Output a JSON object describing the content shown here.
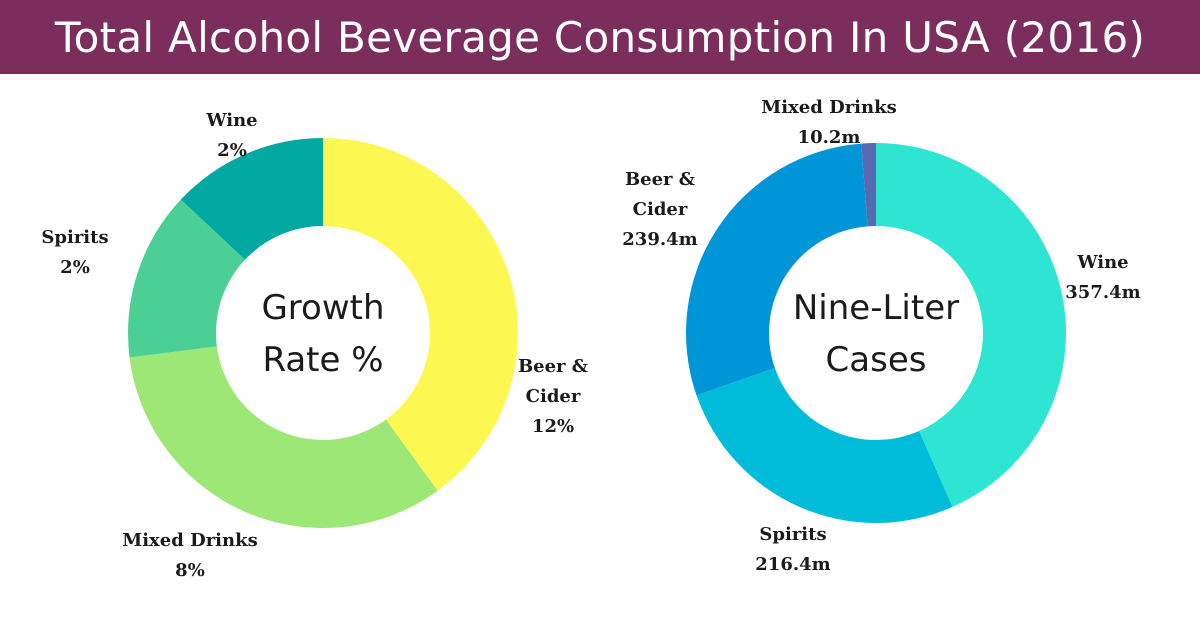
{
  "title": "Total Alcohol Beverage Consumption In USA (2016)",
  "colors": {
    "title_bar": "#7b2d5b"
  },
  "chart_data": [
    {
      "type": "pie",
      "center_label": [
        "Growth",
        "Rate %"
      ],
      "slices": [
        {
          "name": "Beer & Cider",
          "label_lines": [
            "Beer &",
            "Cider"
          ],
          "value_label": "12%",
          "value": 12,
          "color": "#fdf851"
        },
        {
          "name": "Mixed Drinks",
          "label_lines": [
            "Mixed Drinks"
          ],
          "value_label": "8%",
          "value": 8,
          "color": "#9ce775"
        },
        {
          "name": "Spirits",
          "label_lines": [
            "Spirits"
          ],
          "value_label": "2%",
          "value": 2,
          "color": "#4ccf95"
        },
        {
          "name": "Wine",
          "label_lines": [
            "Wine"
          ],
          "value_label": "2%",
          "value": 2,
          "color": "#02a9a2"
        }
      ]
    },
    {
      "type": "pie",
      "center_label": [
        "Nine-Liter",
        "Cases"
      ],
      "slices": [
        {
          "name": "Wine",
          "label_lines": [
            "Wine"
          ],
          "value_label": "357.4m",
          "value": 357.4,
          "color": "#2ee5d3"
        },
        {
          "name": "Spirits",
          "label_lines": [
            "Spirits"
          ],
          "value_label": "216.4m",
          "value": 216.4,
          "color": "#00bcd9"
        },
        {
          "name": "Beer & Cider",
          "label_lines": [
            "Beer &",
            "Cider"
          ],
          "value_label": "239.4m",
          "value": 239.4,
          "color": "#0095d6"
        },
        {
          "name": "Mixed Drinks",
          "label_lines": [
            "Mixed Drinks"
          ],
          "value_label": "10.2m",
          "value": 10.2,
          "color": "#586ab0"
        }
      ]
    }
  ]
}
